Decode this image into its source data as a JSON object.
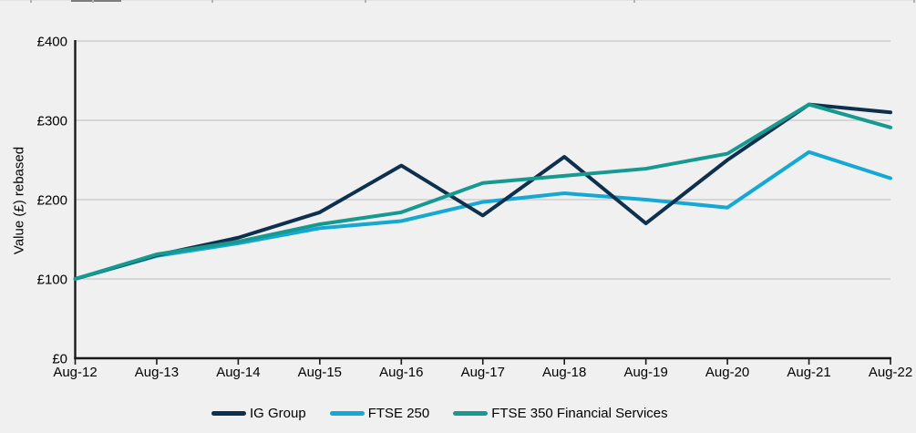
{
  "page": {
    "background": "#f0f0f0"
  },
  "chart_data": {
    "type": "line",
    "title": "",
    "xlabel": "",
    "ylabel": "Value (£) rebased",
    "categories": [
      "Aug-12",
      "Aug-13",
      "Aug-14",
      "Aug-15",
      "Aug-16",
      "Aug-17",
      "Aug-18",
      "Aug-19",
      "Aug-20",
      "Aug-21",
      "Aug-22"
    ],
    "series": [
      {
        "name": "IG Group",
        "color": "#0e304f",
        "values": [
          100,
          130,
          152,
          184,
          243,
          180,
          254,
          170,
          250,
          320,
          310
        ]
      },
      {
        "name": "FTSE 250",
        "color": "#14a8d4",
        "values": [
          100,
          129,
          145,
          164,
          173,
          197,
          208,
          200,
          190,
          260,
          227
        ]
      },
      {
        "name": "FTSE 350 Financial Services",
        "color": "#169a90",
        "values": [
          100,
          131,
          147,
          169,
          184,
          221,
          230,
          239,
          258,
          320,
          291
        ]
      }
    ],
    "draw_order": [
      1,
      0,
      2
    ],
    "ylim": [
      0,
      400
    ],
    "yticks": [
      0,
      100,
      200,
      300,
      400
    ],
    "ytick_prefix": "£",
    "grid": "horizontal-only",
    "legend_position": "bottom",
    "axis_color": "#1a1a1a",
    "grid_color": "#c7c7c7",
    "text_color": "#000000"
  }
}
